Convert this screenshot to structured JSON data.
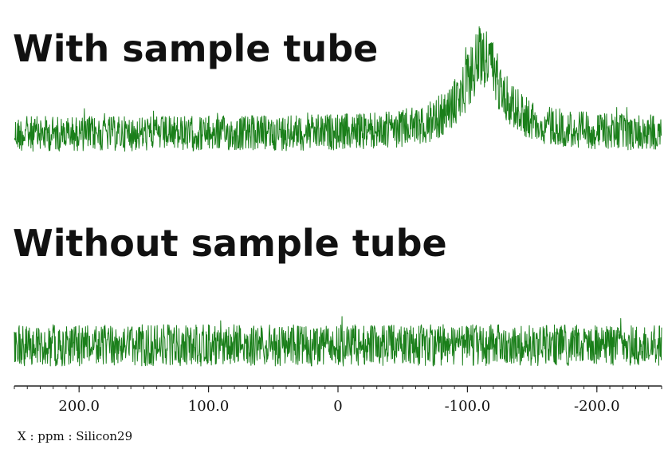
{
  "chart_data": [
    {
      "type": "line",
      "title": "With sample tube",
      "x_range": [
        250,
        -250
      ],
      "x_reversed": true,
      "color": "#1a7f1a",
      "baseline": 0,
      "noise_amplitude": 1.0,
      "peaks": [
        {
          "center": -112,
          "height": 6.0,
          "width": 18
        }
      ]
    },
    {
      "type": "line",
      "title": "Without sample tube",
      "x_range": [
        250,
        -250
      ],
      "x_reversed": true,
      "color": "#1a7f1a",
      "baseline": 0,
      "noise_amplitude": 1.0,
      "peaks": []
    }
  ],
  "axis": {
    "ticks": [
      200.0,
      100.0,
      0,
      -100.0,
      -200.0
    ],
    "tick_labels": [
      "200.0",
      "100.0",
      "0",
      "-100.0",
      "-200.0"
    ],
    "minor_step": 10,
    "label": "X : ppm : Silicon29"
  }
}
